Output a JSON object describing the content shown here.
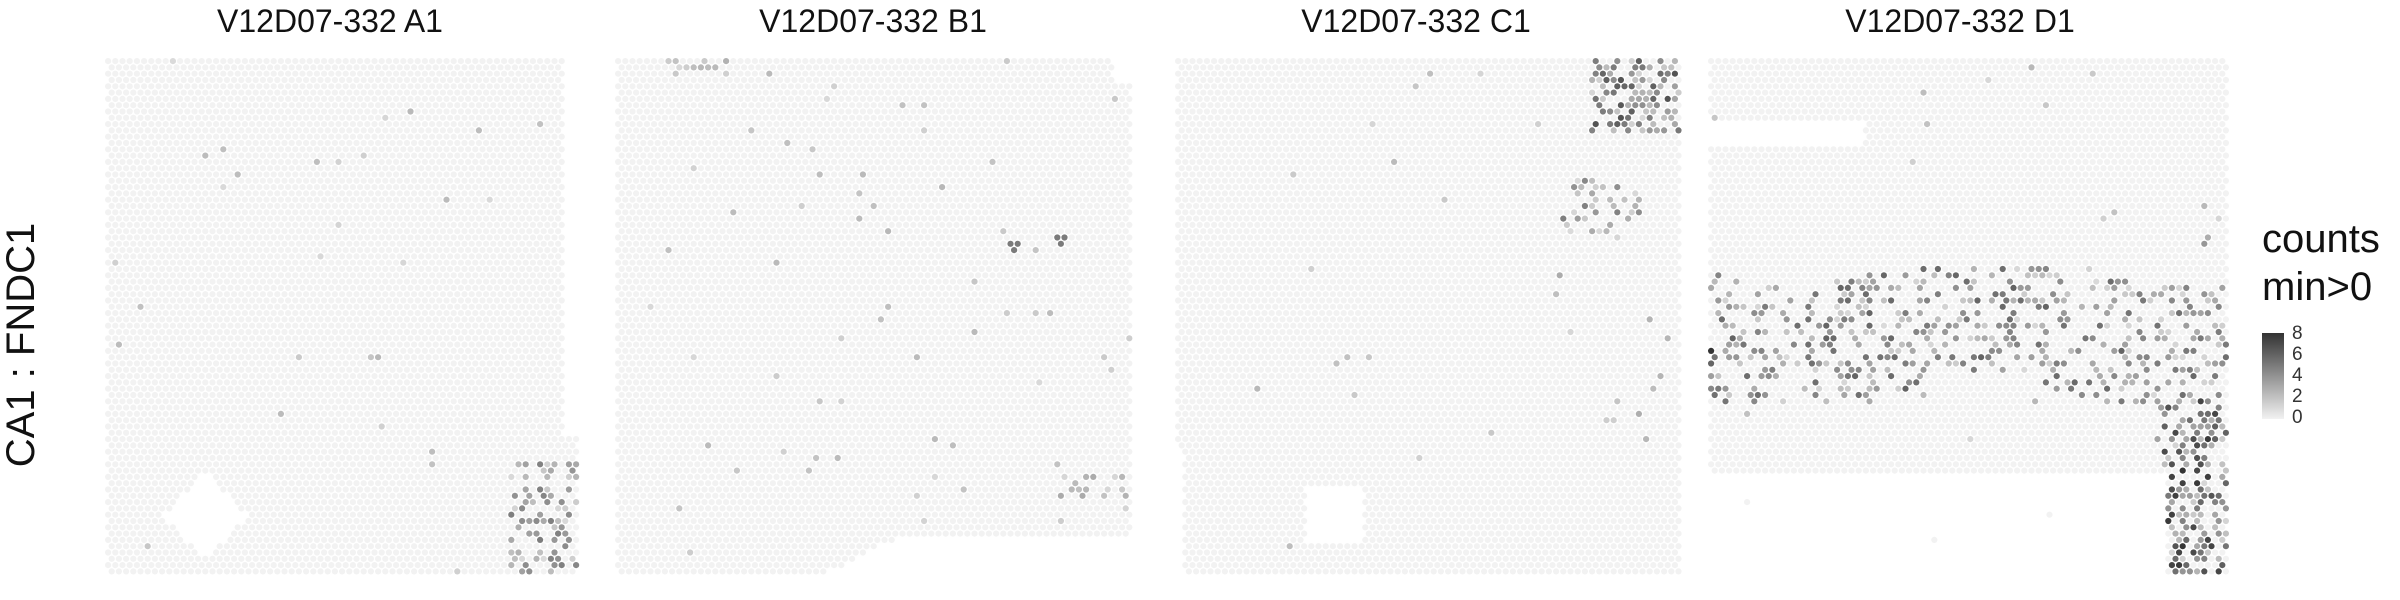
{
  "figure": {
    "row_label": "CA1 : FNDC1"
  },
  "legend": {
    "title_line1": "counts",
    "title_line2": "min>0",
    "ticks": [
      "8",
      "6",
      "4",
      "2",
      "0"
    ],
    "low_color": "#f2f2f2",
    "high_color": "#333333"
  },
  "colors": {
    "background_spot": "#f2f2f2",
    "tissue_bg": "#f7f7f7"
  },
  "chart_data": [
    {
      "type": "heatmap",
      "title": "V12D07-332  A1",
      "value_range": [
        0,
        8
      ],
      "hotspots": [
        {
          "region": "bottom-right",
          "intensity": "medium",
          "count_max": 5
        },
        {
          "region": "scattered",
          "intensity": "low",
          "count_max": 2
        }
      ]
    },
    {
      "type": "heatmap",
      "title": "V12D07-332  B1",
      "value_range": [
        0,
        8
      ],
      "hotspots": [
        {
          "region": "top-left",
          "intensity": "low",
          "count_max": 3
        },
        {
          "region": "center-right",
          "intensity": "medium",
          "count_max": 5
        },
        {
          "region": "scattered",
          "intensity": "low",
          "count_max": 2
        }
      ]
    },
    {
      "type": "heatmap",
      "title": "V12D07-332  C1",
      "value_range": [
        0,
        8
      ],
      "hotspots": [
        {
          "region": "top-right",
          "intensity": "high",
          "count_max": 7
        },
        {
          "region": "upper-right",
          "intensity": "medium",
          "count_max": 5
        },
        {
          "region": "scattered",
          "intensity": "low",
          "count_max": 2
        }
      ]
    },
    {
      "type": "heatmap",
      "title": "V12D07-332  D1",
      "value_range": [
        0,
        8
      ],
      "hotspots": [
        {
          "region": "middle band",
          "intensity": "medium",
          "count_max": 6
        },
        {
          "region": "bottom-right",
          "intensity": "high",
          "count_max": 8
        },
        {
          "region": "left edge",
          "intensity": "high",
          "count_max": 8
        }
      ]
    }
  ]
}
